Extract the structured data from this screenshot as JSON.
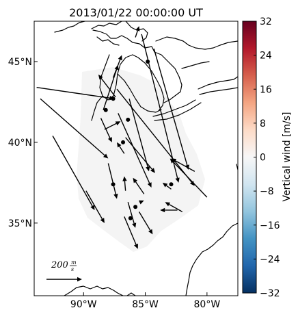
{
  "title": "2013/01/22 00:00:00 UT",
  "chart_data": {
    "type": "quiver-map",
    "title": "2013/01/22 00:00:00 UT",
    "map": {
      "lon_range": [
        -94.0,
        -77.5
      ],
      "lat_range": [
        30.5,
        47.5
      ],
      "x_ticks": [
        {
          "value": -90,
          "label": "90°W"
        },
        {
          "value": -85,
          "label": "85°W"
        },
        {
          "value": -80,
          "label": "80°W"
        }
      ],
      "y_ticks": [
        {
          "value": 35,
          "label": "35°N"
        },
        {
          "value": 40,
          "label": "40°N"
        },
        {
          "value": 45,
          "label": "45°N"
        }
      ],
      "grid": false
    },
    "colorbar": {
      "label": "Vertical wind [m/s]",
      "min": -32,
      "max": 32,
      "ticks": [
        32,
        24,
        16,
        8,
        0,
        -8,
        -16,
        -24,
        -32
      ],
      "tick_labels": [
        "32",
        "24",
        "16",
        "8",
        "0",
        "−8",
        "−16",
        "−24",
        "−32"
      ],
      "colormap": "RdBu_r",
      "color_stops": [
        "#053061",
        "#2166ac",
        "#4393c3",
        "#92c5de",
        "#d1e5f0",
        "#f7f7f7",
        "#fddbc7",
        "#f4a582",
        "#d6604d",
        "#b2182b",
        "#67001f"
      ]
    },
    "vertical_wind_field": {
      "value": 0,
      "color": "#f4f4f4"
    },
    "scale_arrow": {
      "magnitude": 200,
      "label": "200",
      "unit_numerator": "m",
      "unit_denominator": "s"
    },
    "sites": [
      {
        "lon": -88.2,
        "lat": 42.0
      },
      {
        "lon": -87.6,
        "lat": 42.7
      },
      {
        "lon": -84.8,
        "lat": 45.0
      },
      {
        "lon": -86.4,
        "lat": 41.4
      },
      {
        "lon": -86.8,
        "lat": 40.0
      },
      {
        "lon": -87.6,
        "lat": 37.4
      },
      {
        "lon": -85.8,
        "lat": 36.0
      },
      {
        "lon": -86.2,
        "lat": 35.3
      },
      {
        "lon": -82.9,
        "lat": 37.4
      }
    ],
    "vectors": [
      {
        "lon1": -93.8,
        "lat1": 43.4,
        "lon2": -87.5,
        "lat2": 42.7
      },
      {
        "lon1": -93.5,
        "lat1": 42.7,
        "lon2": -88.0,
        "lat2": 39.0
      },
      {
        "lon1": -92.5,
        "lat1": 40.4,
        "lon2": -89.1,
        "lat2": 35.8
      },
      {
        "lon1": -89.8,
        "lat1": 37.0,
        "lon2": -88.3,
        "lat2": 35.0
      },
      {
        "lon1": -88.4,
        "lat1": 42.0,
        "lon2": -87.2,
        "lat2": 44.8
      },
      {
        "lon1": -88.3,
        "lat1": 40.8,
        "lon2": -87.0,
        "lat2": 41.3
      },
      {
        "lon1": -88.6,
        "lat1": 41.5,
        "lon2": -87.7,
        "lat2": 40.0
      },
      {
        "lon1": -88.0,
        "lat1": 38.7,
        "lon2": -87.3,
        "lat2": 36.5
      },
      {
        "lon1": -87.2,
        "lat1": 41.8,
        "lon2": -84.5,
        "lat2": 37.2
      },
      {
        "lon1": -87.4,
        "lat1": 42.8,
        "lon2": -88.8,
        "lat2": 44.2
      },
      {
        "lon1": -87.3,
        "lat1": 43.3,
        "lon2": -81.0,
        "lat2": 37.3
      },
      {
        "lon1": -87.6,
        "lat1": 44.0,
        "lon2": -86.9,
        "lat2": 45.4
      },
      {
        "lon1": -86.7,
        "lat1": 39.3,
        "lon2": -87.3,
        "lat2": 40.0
      },
      {
        "lon1": -86.6,
        "lat1": 37.0,
        "lon2": -86.7,
        "lat2": 37.9
      },
      {
        "lon1": -86.4,
        "lat1": 36.3,
        "lon2": -85.8,
        "lat2": 34.7
      },
      {
        "lon1": -86.7,
        "lat1": 35.4,
        "lon2": -85.6,
        "lat2": 33.4
      },
      {
        "lon1": -86.6,
        "lat1": 40.3,
        "lon2": -84.2,
        "lat2": 38.1
      },
      {
        "lon1": -86.3,
        "lat1": 42.7,
        "lon2": -84.7,
        "lat2": 38.2
      },
      {
        "lon1": -85.5,
        "lat1": 35.7,
        "lon2": -84.4,
        "lat2": 34.3
      },
      {
        "lon1": -85.4,
        "lat1": 36.3,
        "lon2": -85.1,
        "lat2": 36.4
      },
      {
        "lon1": -85.1,
        "lat1": 36.8,
        "lon2": -86.0,
        "lat2": 37.8
      },
      {
        "lon1": -84.3,
        "lat1": 45.8,
        "lon2": -81.5,
        "lat2": 38.3
      },
      {
        "lon1": -85.3,
        "lat1": 46.7,
        "lon2": -82.3,
        "lat2": 37.5
      },
      {
        "lon1": -82.4,
        "lat1": 35.8,
        "lon2": -83.8,
        "lat2": 35.8
      },
      {
        "lon1": -82.0,
        "lat1": 35.7,
        "lon2": -83.4,
        "lat2": 36.3
      },
      {
        "lon1": -82.9,
        "lat1": 37.1,
        "lon2": -83.6,
        "lat2": 37.5
      },
      {
        "lon1": -81.0,
        "lat1": 38.2,
        "lon2": -82.9,
        "lat2": 39.0
      },
      {
        "lon1": -80.0,
        "lat1": 36.6,
        "lon2": -83.0,
        "lat2": 39.0
      },
      {
        "lon1": -85.8,
        "lat1": 46.5,
        "lon2": -85.5,
        "lat2": 47.2
      }
    ]
  }
}
